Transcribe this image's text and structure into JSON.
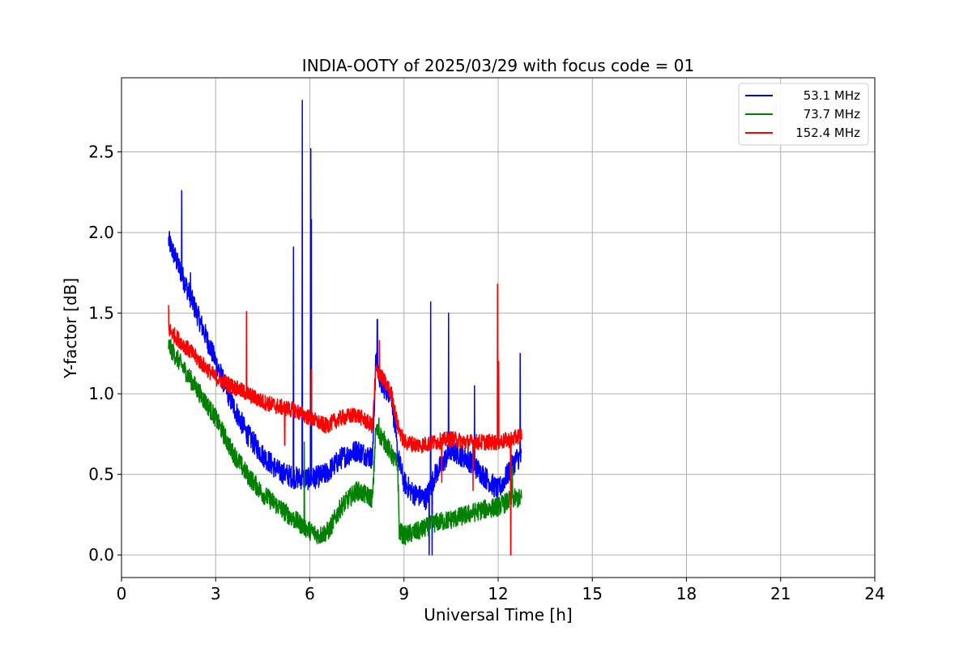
{
  "chart_data": {
    "type": "line",
    "title": "INDIA-OOTY of 2025/03/29 with focus code = 01",
    "xlabel": "Universal Time [h]",
    "ylabel": "Y-factor [dB]",
    "xlim": [
      0,
      24
    ],
    "ylim": [
      -0.14,
      2.96
    ],
    "xticks": [
      0,
      3,
      6,
      9,
      12,
      15,
      18,
      21,
      24
    ],
    "xtick_labels": [
      "0",
      "3",
      "6",
      "9",
      "12",
      "15",
      "18",
      "21",
      "24"
    ],
    "yticks": [
      0.0,
      0.5,
      1.0,
      1.5,
      2.0,
      2.5
    ],
    "ytick_labels": [
      "0.0",
      "0.5",
      "1.0",
      "1.5",
      "2.0",
      "2.5"
    ],
    "grid": true,
    "legend_position": "top-right",
    "series": [
      {
        "name": "53.1 MHz",
        "color": "#0000ff",
        "noise": 0.07,
        "x": [
          1.5,
          1.8,
          2.0,
          2.3,
          2.6,
          3.0,
          3.5,
          4.0,
          4.5,
          5.0,
          5.5,
          6.0,
          6.5,
          7.0,
          7.5,
          8.0,
          8.1,
          8.3,
          8.6,
          8.8,
          9.0,
          9.3,
          9.7,
          10.0,
          10.5,
          11.0,
          11.5,
          12.0,
          12.3,
          12.6,
          12.75
        ],
        "y": [
          1.95,
          1.8,
          1.7,
          1.55,
          1.4,
          1.2,
          0.95,
          0.75,
          0.62,
          0.52,
          0.48,
          0.47,
          0.5,
          0.6,
          0.65,
          0.6,
          1.2,
          1.05,
          1.0,
          0.62,
          0.45,
          0.38,
          0.35,
          0.5,
          0.65,
          0.6,
          0.5,
          0.4,
          0.5,
          0.6,
          0.6
        ],
        "spikes": [
          [
            1.92,
            2.26
          ],
          [
            2.2,
            1.75
          ],
          [
            5.48,
            1.91
          ],
          [
            5.76,
            2.82
          ],
          [
            6.03,
            2.52
          ],
          [
            6.05,
            2.08
          ],
          [
            8.15,
            1.46
          ],
          [
            9.85,
            1.57
          ],
          [
            10.42,
            1.5
          ],
          [
            11.25,
            1.05
          ],
          [
            12.7,
            1.25
          ],
          [
            9.9,
            0.0
          ],
          [
            9.8,
            0.0
          ]
        ]
      },
      {
        "name": "73.7 MHz",
        "color": "#008000",
        "noise": 0.06,
        "x": [
          1.5,
          2.0,
          2.5,
          3.0,
          3.5,
          4.0,
          4.5,
          5.0,
          5.5,
          6.0,
          6.3,
          6.6,
          7.0,
          7.5,
          8.0,
          8.1,
          8.4,
          8.8,
          8.85,
          9.0,
          9.5,
          10.0,
          10.5,
          11.0,
          11.5,
          12.0,
          12.5,
          12.75
        ],
        "y": [
          1.3,
          1.15,
          1.0,
          0.85,
          0.65,
          0.5,
          0.38,
          0.3,
          0.22,
          0.15,
          0.12,
          0.15,
          0.3,
          0.4,
          0.35,
          0.78,
          0.7,
          0.55,
          0.15,
          0.12,
          0.15,
          0.2,
          0.22,
          0.25,
          0.28,
          0.3,
          0.35,
          0.35
        ],
        "spikes": [
          [
            8.2,
            0.85
          ],
          [
            5.82,
            0.7
          ],
          [
            12.45,
            0.55
          ]
        ]
      },
      {
        "name": "152.4 MHz",
        "color": "#ff0000",
        "noise": 0.05,
        "x": [
          1.5,
          2.0,
          2.5,
          3.0,
          3.5,
          4.0,
          4.5,
          5.0,
          5.5,
          6.0,
          6.5,
          7.0,
          7.5,
          8.0,
          8.1,
          8.3,
          8.6,
          8.8,
          9.0,
          9.5,
          10.0,
          10.5,
          11.0,
          11.5,
          12.0,
          12.5,
          12.75
        ],
        "y": [
          1.4,
          1.3,
          1.2,
          1.1,
          1.05,
          1.0,
          0.95,
          0.92,
          0.9,
          0.85,
          0.8,
          0.85,
          0.87,
          0.8,
          1.15,
          1.1,
          1.0,
          0.8,
          0.7,
          0.68,
          0.7,
          0.72,
          0.7,
          0.7,
          0.7,
          0.72,
          0.75
        ],
        "spikes": [
          [
            1.5,
            1.55
          ],
          [
            3.98,
            1.51
          ],
          [
            6.05,
            1.15
          ],
          [
            8.22,
            1.33
          ],
          [
            11.98,
            1.68
          ],
          [
            12.02,
            1.2
          ],
          [
            12.4,
            0.0
          ],
          [
            11.2,
            0.4
          ],
          [
            5.2,
            0.68
          ],
          [
            10.2,
            0.45
          ]
        ]
      }
    ]
  }
}
